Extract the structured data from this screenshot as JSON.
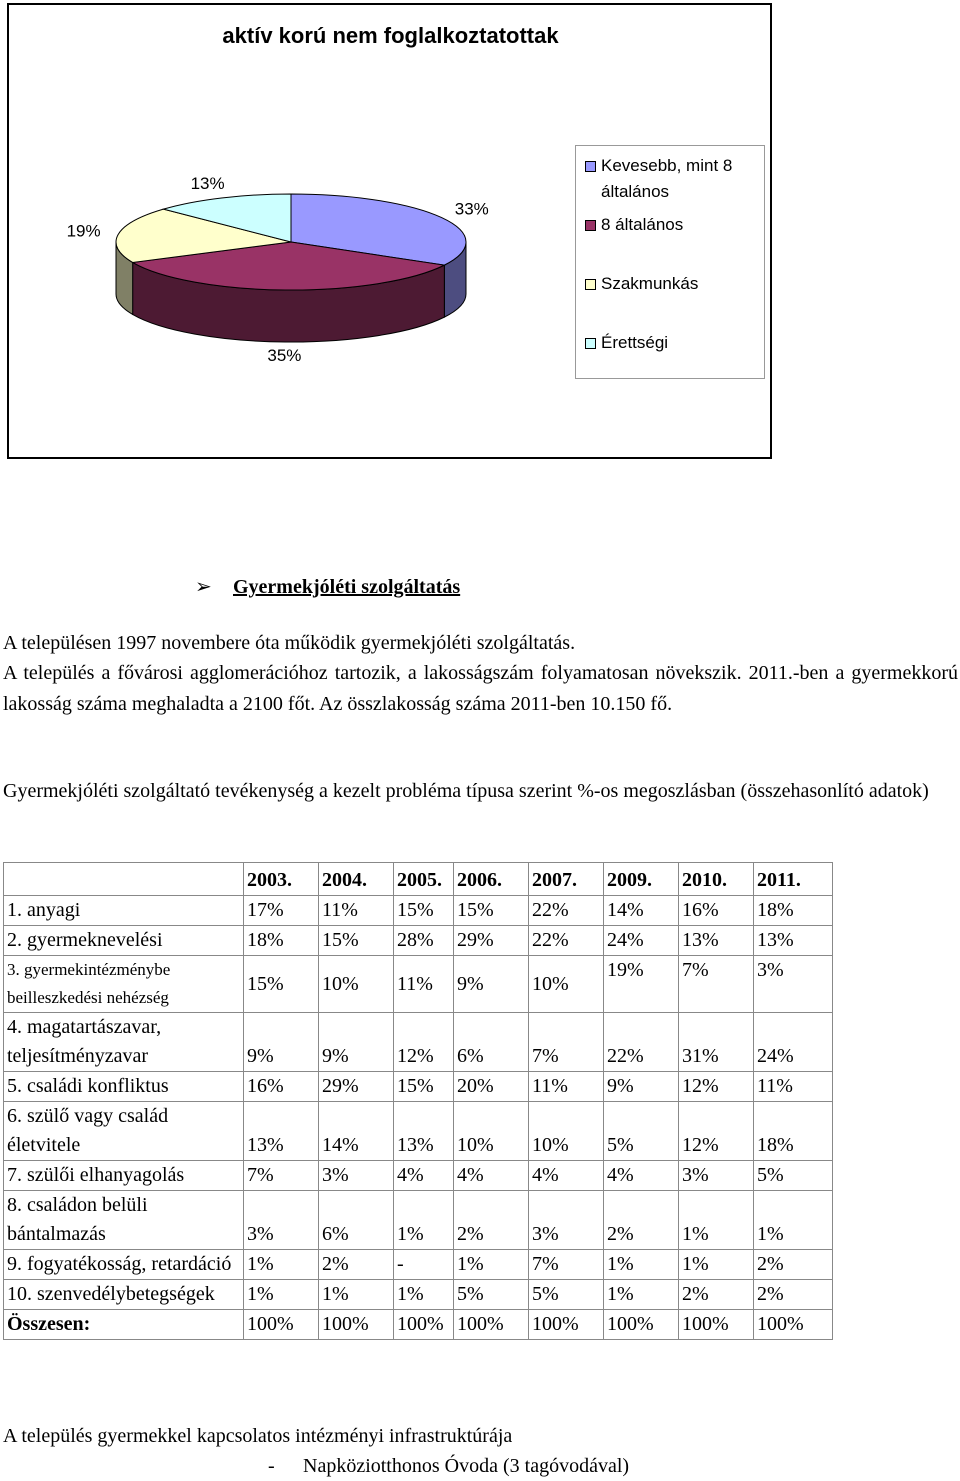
{
  "chart_data": {
    "type": "pie",
    "title": "aktív korú nem foglalkoztatottak",
    "categories": [
      "Kevesebb, mint 8 általános",
      "8 általános",
      "Szakmunkás",
      "Érettségi"
    ],
    "values": [
      33,
      35,
      19,
      13
    ],
    "value_labels": [
      "33%",
      "35%",
      "19%",
      "13%"
    ],
    "colors": [
      "#9999ff",
      "#993366",
      "#ffffcc",
      "#ccffff"
    ],
    "legend": "right"
  },
  "section_title": "Gyermekjóléti szolgáltatás",
  "paragraphs": [
    "A településen 1997 novembere óta működik gyermekjóléti szolgáltatás.",
    "A település a fővárosi agglomerációhoz tartozik, a lakosságszám folyamatosan növekszik. 2011.-ben a gyermekkorú lakosság száma meghaladta a 2100 főt. Az összlakosság száma 2011-ben 10.150 fő.",
    "Gyermekjóléti szolgáltató tevékenység a kezelt probléma típusa szerint %-os megoszlásban (összehasonlító adatok)"
  ],
  "table": {
    "years": [
      "2003.",
      "2004.",
      "2005.",
      "2006.",
      "2007.",
      "2009.",
      "2010.",
      "2011."
    ],
    "rows": [
      {
        "label": "1. anyagi",
        "values": [
          "17%",
          "11%",
          "15%",
          "15%",
          "22%",
          "14%",
          "16%",
          "18%"
        ]
      },
      {
        "label": "2. gyermeknevelési",
        "values": [
          "18%",
          "15%",
          "28%",
          "29%",
          "22%",
          "24%",
          "13%",
          "13%"
        ]
      },
      {
        "label": "3. gyermekintézménybe beilleszkedési nehézség",
        "values": [
          "15%",
          "10%",
          "11%",
          "9%",
          "10%",
          "19%",
          "7%",
          "3%"
        ]
      },
      {
        "label": "4. magatartászavar, teljesítményzavar",
        "values": [
          "9%",
          "9%",
          "12%",
          "6%",
          "7%",
          "22%",
          "31%",
          "24%"
        ]
      },
      {
        "label": "5. családi konfliktus",
        "values": [
          "16%",
          "29%",
          "15%",
          "20%",
          "11%",
          "9%",
          "12%",
          "11%"
        ]
      },
      {
        "label": "6. szülő vagy család életvitele",
        "values": [
          "13%",
          "14%",
          "13%",
          "10%",
          "10%",
          "5%",
          "12%",
          "18%"
        ]
      },
      {
        "label": "7. szülői elhanyagolás",
        "values": [
          "7%",
          "3%",
          "4%",
          "4%",
          "4%",
          "4%",
          "3%",
          "5%"
        ]
      },
      {
        "label": "8. családon belüli bántalmazás",
        "values": [
          "3%",
          "6%",
          "1%",
          "2%",
          "3%",
          "2%",
          "1%",
          "1%"
        ]
      },
      {
        "label": "9. fogyatékosság, retardáció",
        "values": [
          "1%",
          "2%",
          "-",
          "1%",
          "7%",
          "1%",
          "1%",
          "2%"
        ]
      },
      {
        "label": "10. szenvedélybetegségek",
        "values": [
          "1%",
          "1%",
          "1%",
          "5%",
          "5%",
          "1%",
          "2%",
          "2%"
        ]
      },
      {
        "label": "Összesen:",
        "values": [
          "100%",
          "100%",
          "100%",
          "100%",
          "100%",
          "100%",
          "100%",
          "100%"
        ]
      }
    ]
  },
  "footer": {
    "heading": "A település gyermekkel kapcsolatos intézményi infrastruktúrája",
    "bullet": "-",
    "item": "Napköziotthonos Óvoda (3 tagóvodával)"
  }
}
